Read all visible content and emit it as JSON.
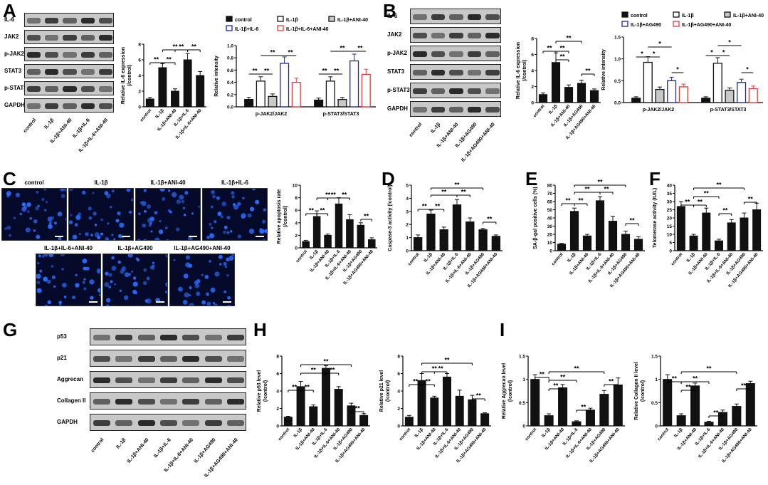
{
  "panels": {
    "A": {
      "letter": "A",
      "blot_rows": [
        "IL-6",
        "JAK2",
        "p-JAK2",
        "STAT3",
        "p-STAT3",
        "GAPDH"
      ],
      "lanes": [
        "control",
        "IL-1β",
        "IL-1β+ANI-40",
        "IL-1β+IL-6",
        "IL-1β+IL-6+ANI-40"
      ],
      "legend": [
        "control",
        "IL-1β",
        "IL-1β+ANI-40",
        "IL-1β+IL-6",
        "IL-1β+IL-6+ANI-40"
      ]
    },
    "B": {
      "letter": "B",
      "blot_rows": [
        "IL-6",
        "JAK2",
        "p-JAK2",
        "STAT3",
        "p-STAT3",
        "GAPDH"
      ],
      "lanes": [
        "control",
        "IL-1β",
        "IL-1β+ANI-40",
        "IL-1β+AG490",
        "IL-1β+AG490+ANI-40"
      ],
      "legend": [
        "control",
        "IL-1β",
        "IL-1β+ANI-40",
        "IL-1β+AG490",
        "IL-1β+AG490+ANI-40"
      ]
    },
    "C": {
      "letter": "C",
      "micro_labels": [
        "control",
        "IL-1β",
        "IL-1β+ANI-40",
        "IL-1β+IL-6",
        "IL-1β+IL-6+ANI-40",
        "IL-1β+AG490",
        "IL-1β+AG490+ANI-40"
      ]
    },
    "D": {
      "letter": "D"
    },
    "E": {
      "letter": "E"
    },
    "F": {
      "letter": "F"
    },
    "G": {
      "letter": "G",
      "blot_rows": [
        "p53",
        "p21",
        "Aggrecan",
        "Collagen II",
        "GAPDH"
      ],
      "lanes": [
        "control",
        "IL-1β",
        "IL-1β+ANI-40",
        "IL-1β+IL-6",
        "IL-1β+IL-6+ANI-40",
        "IL-1β+AG490",
        "IL-1β+AG490+ANI-40"
      ]
    },
    "H": {
      "letter": "H"
    },
    "I": {
      "letter": "I"
    }
  },
  "colors": {
    "black": "#111111",
    "white": "#ffffff",
    "gray": "#c8c8c8",
    "blue": "#1f1fb4",
    "red": "#e83a3a"
  },
  "chart_data": [
    {
      "id": "A-il6",
      "type": "bar",
      "ylabel": "Relative IL-6 expression\n(/control)",
      "ylim": [
        0,
        8
      ],
      "yticks": [
        0,
        2,
        4,
        6,
        8
      ],
      "categories": [
        "control",
        "IL-1β",
        "IL-1β+ANI-40",
        "IL-1β+IL-6",
        "IL-1β+IL-6+ANI-40"
      ],
      "values": [
        1.0,
        5.0,
        2.0,
        6.0,
        4.0
      ],
      "errors": [
        0.2,
        0.5,
        0.3,
        0.8,
        0.5
      ],
      "annotations": [
        "**",
        "**",
        "**",
        "**",
        "**"
      ]
    },
    {
      "id": "A-intensity",
      "type": "bar",
      "ylabel": "Relative intensity",
      "ylim": [
        0,
        1.0
      ],
      "yticks": [
        0.0,
        0.2,
        0.4,
        0.6,
        0.8,
        1.0
      ],
      "categories": [
        "p-JAK2/JAK2",
        "p-STAT3/STAT3"
      ],
      "series": [
        {
          "name": "control",
          "values": [
            0.12,
            0.11
          ]
        },
        {
          "name": "IL-1β",
          "values": [
            0.42,
            0.42
          ]
        },
        {
          "name": "IL-1β+ANI-40",
          "values": [
            0.17,
            0.12
          ]
        },
        {
          "name": "IL-1β+IL-6",
          "values": [
            0.71,
            0.75
          ]
        },
        {
          "name": "IL-1β+IL-6+ANI-40",
          "values": [
            0.4,
            0.53
          ]
        }
      ],
      "annotations": [
        "**",
        "**",
        "**",
        "**",
        "**",
        "**",
        "**",
        "**"
      ]
    },
    {
      "id": "B-il6",
      "type": "bar",
      "ylabel": "Relative IL-6 expression\n(/control)",
      "ylim": [
        0,
        8
      ],
      "yticks": [
        0,
        2,
        4,
        6,
        8
      ],
      "categories": [
        "control",
        "IL-1β",
        "IL-1β+ANI-40",
        "IL-1β+AG490",
        "IL-1β+AG490+ANI-40"
      ],
      "values": [
        1.0,
        5.0,
        1.9,
        2.4,
        1.5
      ],
      "errors": [
        0.2,
        1.2,
        0.3,
        0.4,
        0.2
      ],
      "annotations": [
        "**",
        "**",
        "**",
        "**",
        "**"
      ]
    },
    {
      "id": "B-intensity",
      "type": "bar",
      "ylabel": "Relative intensity",
      "ylim": [
        0,
        1.5
      ],
      "yticks": [
        0.0,
        0.5,
        1.0,
        1.5
      ],
      "categories": [
        "p-JAK2/JAK2",
        "p-STAT3/STAT3"
      ],
      "series": [
        {
          "name": "control",
          "values": [
            0.1,
            0.1
          ]
        },
        {
          "name": "IL-1β",
          "values": [
            0.92,
            0.9
          ]
        },
        {
          "name": "IL-1β+ANI-40",
          "values": [
            0.3,
            0.28
          ]
        },
        {
          "name": "IL-1β+AG490",
          "values": [
            0.5,
            0.46
          ]
        },
        {
          "name": "IL-1β+AG490+ANI-40",
          "values": [
            0.36,
            0.32
          ]
        }
      ],
      "annotations": [
        "*",
        "*",
        "*",
        "*",
        "*",
        "*",
        "*",
        "*"
      ]
    },
    {
      "id": "C-apoptosis",
      "type": "bar",
      "ylabel": "Relative apoptosis rate\n(/control)",
      "ylim": [
        0,
        10
      ],
      "yticks": [
        0,
        2,
        4,
        6,
        8,
        10
      ],
      "categories": [
        "control",
        "IL-1β",
        "IL-1β+ANI-40",
        "IL-1β+IL-6",
        "IL-1β+IL-6+ANI-40",
        "IL-1β+AG490",
        "IL-1β+AG490+ANI-40"
      ],
      "values": [
        1.0,
        5.0,
        2.0,
        7.0,
        4.5,
        3.6,
        1.3
      ],
      "errors": [
        0.2,
        0.9,
        0.2,
        1.0,
        0.8,
        0.4,
        0.3
      ],
      "annotations": [
        "**",
        "**",
        "**",
        "**",
        "**",
        "**"
      ]
    },
    {
      "id": "D-caspase",
      "type": "bar",
      "ylabel": "Caspase-3 activity (/control)",
      "ylim": [
        0,
        5
      ],
      "yticks": [
        0,
        1,
        2,
        3,
        4,
        5
      ],
      "categories": [
        "control",
        "IL-1β",
        "IL-1β+ANI-40",
        "IL-1β+IL-6",
        "IL-1β+IL-6+ANI-40",
        "IL-1β+AG490",
        "IL-1β+AG490+ANI-40"
      ],
      "values": [
        1.0,
        2.8,
        1.6,
        3.5,
        2.2,
        1.6,
        1.1
      ],
      "errors": [
        0.2,
        0.3,
        0.2,
        0.4,
        0.3,
        0.1,
        0.1
      ],
      "annotations": [
        "**",
        "**",
        "**",
        "**",
        "**",
        "**"
      ]
    },
    {
      "id": "E-sabgal",
      "type": "bar",
      "ylabel": "SA-β-gal positive cells (%)",
      "ylim": [
        0,
        80
      ],
      "yticks": [
        0,
        10,
        20,
        30,
        40,
        50,
        60,
        70,
        80
      ],
      "categories": [
        "control",
        "IL-1β",
        "IL-1β+ANI-40",
        "IL-1β+IL-6",
        "IL-1β+IL-6+ANI-40",
        "IL-1β+AG490",
        "IL-1β+AG490+ANI-40"
      ],
      "values": [
        8,
        48,
        18,
        61,
        36,
        20,
        14
      ],
      "errors": [
        1,
        4,
        2,
        5,
        6,
        4,
        3
      ],
      "annotations": [
        "**",
        "**",
        "**",
        "**",
        "**",
        "**"
      ]
    },
    {
      "id": "F-telomerase",
      "type": "bar",
      "ylabel": "Telomerase activity (IU/L)",
      "ylim": [
        0,
        40
      ],
      "yticks": [
        0,
        5,
        10,
        15,
        20,
        25,
        30,
        35,
        40
      ],
      "categories": [
        "control",
        "IL-1β",
        "IL-1β+ANI-40",
        "IL-1β+IL-6",
        "IL-1β+IL-6+ANI-40",
        "IL-1β+AG490",
        "IL-1β+AG490+ANI-40"
      ],
      "values": [
        27,
        9,
        23,
        6,
        17,
        20,
        25
      ],
      "errors": [
        3,
        1,
        3,
        1,
        2,
        3,
        4
      ],
      "annotations": [
        "**",
        "**",
        "**",
        "**",
        "**",
        "**"
      ]
    },
    {
      "id": "H-p53",
      "type": "bar",
      "ylabel": "Relative p53 level\n(/control)",
      "ylim": [
        0,
        8
      ],
      "yticks": [
        0,
        2,
        4,
        6,
        8
      ],
      "categories": [
        "control",
        "IL-1β",
        "IL-1β+ANI-40",
        "IL-1β+IL-6",
        "IL-1β+IL-6+ANI-40",
        "IL-1β+AG490",
        "IL-1β+AG490+ANI-40"
      ],
      "values": [
        1.0,
        4.5,
        2.2,
        6.6,
        4.2,
        2.3,
        1.2
      ],
      "errors": [
        0.1,
        0.6,
        0.2,
        0.3,
        0.3,
        0.3,
        0.2
      ],
      "annotations": [
        "**",
        "**",
        "**",
        "**",
        "**",
        "**"
      ]
    },
    {
      "id": "H-p21",
      "type": "bar",
      "ylabel": "Relative p21 level\n(/control)",
      "ylim": [
        0,
        8
      ],
      "yticks": [
        0,
        2,
        4,
        6,
        8
      ],
      "categories": [
        "control",
        "IL-1β",
        "IL-1β+ANI-40",
        "IL-1β+IL-6",
        "IL-1β+IL-6+ANI-40",
        "IL-1β+AG490",
        "IL-1β+AG490+ANI-40"
      ],
      "values": [
        1.0,
        5.2,
        3.2,
        5.6,
        3.4,
        3.0,
        1.4
      ],
      "errors": [
        0.2,
        0.8,
        0.2,
        0.4,
        0.7,
        0.5,
        0.1
      ],
      "annotations": [
        "**",
        "**",
        "**",
        "**",
        "**",
        "**"
      ]
    },
    {
      "id": "I-aggrecan",
      "type": "bar",
      "ylabel": "Relative Aggrecan level\n(/control)",
      "ylim": [
        0,
        1.5
      ],
      "yticks": [
        0.0,
        0.5,
        1.0,
        1.5
      ],
      "categories": [
        "control",
        "IL-1β",
        "IL-1β+ANI-40",
        "IL-1β+IL-6",
        "IL-1β+IL-6+ANI-40",
        "IL-1β+AG490",
        "IL-1β+AG490+ANI-40"
      ],
      "values": [
        1.0,
        0.22,
        0.82,
        0.09,
        0.34,
        0.68,
        0.88
      ],
      "errors": [
        0.1,
        0.04,
        0.07,
        0.02,
        0.04,
        0.08,
        0.15
      ],
      "annotations": [
        "**",
        "**",
        "**",
        "**",
        "**",
        "**"
      ]
    },
    {
      "id": "I-collagen",
      "type": "bar",
      "ylabel": "Relative Collagen II level\n(/control)",
      "ylim": [
        0,
        1.5
      ],
      "yticks": [
        0.0,
        0.5,
        1.0,
        1.5
      ],
      "categories": [
        "control",
        "IL-1β",
        "IL-1β+ANI-40",
        "IL-1β+IL-6",
        "IL-1β+IL-6+ANI-40",
        "IL-1β+AG490",
        "IL-1β+AG490+ANI-40"
      ],
      "values": [
        1.0,
        0.22,
        0.86,
        0.08,
        0.29,
        0.42,
        0.91
      ],
      "errors": [
        0.1,
        0.04,
        0.06,
        0.02,
        0.05,
        0.05,
        0.05
      ],
      "annotations": [
        "**",
        "**",
        "**",
        "**",
        "**",
        "**"
      ]
    }
  ]
}
